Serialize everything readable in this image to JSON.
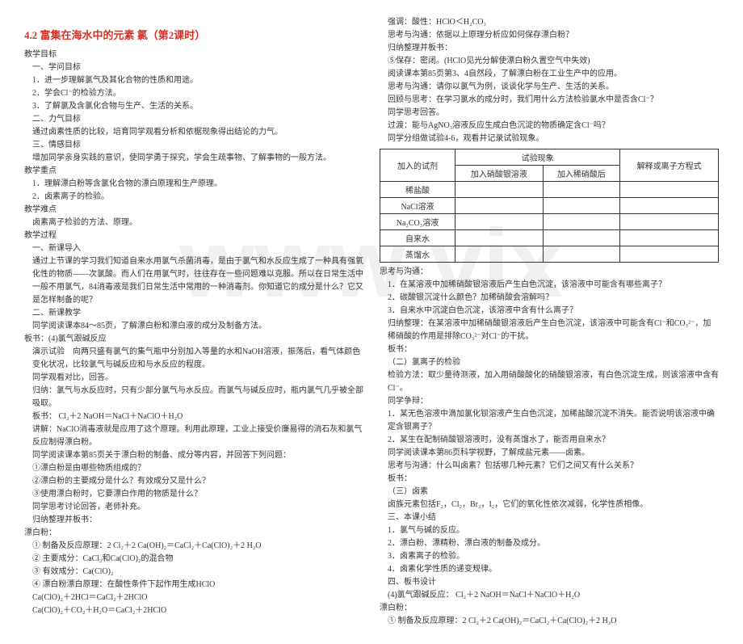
{
  "title": "4.2 富集在海水中的元素 氯（第2课时）",
  "left": {
    "l1": "教学目标",
    "l2": "一、学问目标",
    "l3": "1．进一步理解氯气及其化合物的性质和用途。",
    "l4": "2．学会Cl⁻的检验方法。",
    "l5": "3．了解氯及含氯化合物与生产、生活的关系。",
    "l6": "二、力气目标",
    "l7": "通过卤素性质的比较，培育同学观看分析和依椐现象得出结论的力气。",
    "l8": "三、情感目标",
    "l9": "增加同学亲身实践的意识，使同学勇于探究，学会生疏事物、了解事物的一般方法。",
    "l10": "教学重点",
    "l11": "1．理解漂白粉等含氯化合物的漂白原理和生产原理。",
    "l12": "2．卤素离子的检验。",
    "l13": "教学难点",
    "l14": "卤素离子检验的方法、原理。",
    "l15": "教学过程",
    "l16": "一、新课导入",
    "l17": "通过上节课的学习我们知道自来水用氯气杀菌消毒，是由于氯气和水反应生成了一种具有强氧化性的物质——次氯酸。而人们在用氯气时，往往存在一些问题难以克服。所以在日常生活中一般不用氯气，84消毒液是我们日常生活中常用的一种消毒剂。你知道它的成分是什么？它又是怎样制备的呢？",
    "l18": "二、新课教学",
    "l19": "同学阅读课本84～85页，了解漂白粉和漂白液的成分及制备方法。",
    "l20": "板书：(4)氯气跟碱反应",
    "l21": "演示试验　向两只盛有氯气的集气瓶中分别加入等量的水和NaOH溶液，振荡后，看气体颜色变化状况，比较氯气与碱反应和与水反应的程度。",
    "l22": "同学观看对比，回答。",
    "l23": "归纳：氯气与水反应时，只有少部分氯气与水反应。而氯气与碱反应时，瓶内氯气几乎被全部吸取。",
    "l24": "板书：  Cl₂＋2 NaOH＝NaCl＋NaClO＋H₂O",
    "l25": "讲解：NaClO消毒液就是应用了这个原理。利用此原理，工业上接受价廉易得的消石灰和氯气反应制得漂白粉。",
    "l26": "同学阅读课本第85页关于漂白粉的制备、成分等内容，并回答下列问题：",
    "l27": "①漂白粉是由哪些物质组成的？",
    "l28": "②漂白粉的主要成分是什么？有效成分又是什么？",
    "l29": "③使用漂白粉时，它要漂白作用的物质是什么？",
    "l30": "同学思考讨论回答，老师补充。",
    "l31": "归纳整理并板书：",
    "l32": "漂白粉：",
    "l33": "① 制备及反应原理：2 Cl₂＋2 Ca(OH)₂＝CaCl₂＋Ca(ClO)₂＋2 H₂O",
    "l34": "② 主要成分：CaCl₂和Ca(ClO)₂的混合物",
    "l35": "③ 有效成分：Ca(ClO)₂",
    "l36": "④ 漂白粉漂白原理：在酸性条件下起作用生成HClO",
    "l37": "Ca(ClO)₂＋2HCl＝CaCl₂＋2HClO",
    "l38": "Ca(ClO)₂＋CO₂＋H₂O＝CaCl₂＋2HClO"
  },
  "right": {
    "r1": "强调：酸性：HClO＜H₂CO₃",
    "r2": "思考与沟通：依据以上原理分析应如何保存漂白粉？",
    "r3": "归纳整理并板书：",
    "r4": "⑤保存：密闭。(HClO见光分解使漂白粉久置空气中失效)",
    "r5": "阅读课本第85页第3、4自然段，了解漂白粉在工业生产中的应用。",
    "r6": "思考与沟通：请你以氯气为例，谈谈化学与生产、生活的关系。",
    "r7": "回顾与思考：在学习氯水的成分时，我们用什么方法检验氯水中是否含Cl⁻？",
    "r8": "同学思考回答。",
    "r9": "过渡：能与AgNO₃溶液反应生成白色沉淀的物质确定含Cl⁻吗？",
    "r10": "同学分组做试验4-6，观看并记录试验现象。",
    "tbl": {
      "h1": "加入的试剂",
      "h2": "试验现象",
      "h3": "解释或离子方程式",
      "h2a": "加入硝酸银溶液",
      "h2b": "加入稀硝酸后",
      "rows": [
        "稀盐酸",
        "NaCl溶液",
        "Na₂CO₃溶液",
        "自来水",
        "蒸馏水"
      ]
    },
    "r11": "思考与沟通：",
    "r12": "1．在某溶液中加稀硝酸银溶液后产生白色沉淀，该溶液中可能含有哪些离子？",
    "r13": "2．碳酸银沉淀什么颜色？加稀硝酸会溶解吗？",
    "r14": "3．自来水中沉淀白色沉淀，该溶液中含有什么离子？",
    "r15": "归纳整理：在某溶液中加稀硝酸银溶液后产生白色沉淀，该溶液中可能含有Cl⁻和CO₃²⁻，加稀硝酸的作用是排除CO₃²⁻对Cl⁻的干扰。",
    "r16": "板书：",
    "r17": "（二）氯离子的检验",
    "r18": "检验方法：取少量待测液，加入用硝酸酸化的硝酸银溶液，有白色沉淀生成，则该溶液中含有Cl⁻。",
    "r19": "同学争辩：",
    "r20": "1．某无色溶液中滴加氯化钡溶液产生白色沉淀，加稀盐酸沉淀不消失。能否说明该溶液中确定含银离子？",
    "r21": "2．某生在配制硝酸银溶液时，没有蒸馏水了，能否用自来水？",
    "r22": "同学阅读课本第86页科学视野，了解成盐元素——卤素。",
    "r23": "思考与沟通：什么叫卤素？包括哪几种元素？它们之间又有什么关系？",
    "r24": "板书：",
    "r25": "（三）卤素",
    "r26": "卤族元素包括F₂，Cl₂，Br₂，I₂，它们的氧化性依次减弱，化学性质相像。",
    "r27": "三、本课小结",
    "r28": "1．氯气与碱的反应。",
    "r29": "2．漂白粉、漂精粉、漂白液的制备及成分。",
    "r30": "3．卤素离子的检验。",
    "r31": "4．卤素化学性质的递变规律。",
    "r32": "四、板书设计",
    "r33": "(4)氯气跟碱反应：    Cl₂＋2 NaOH＝NaCl＋NaClO＋H₂O",
    "r34": "漂白粉：",
    "r35": "① 制备及反应原理：2 Cl₂＋2 Ca(OH)₂＝CaCl₂＋Ca(ClO)₂＋2 H₂O"
  }
}
